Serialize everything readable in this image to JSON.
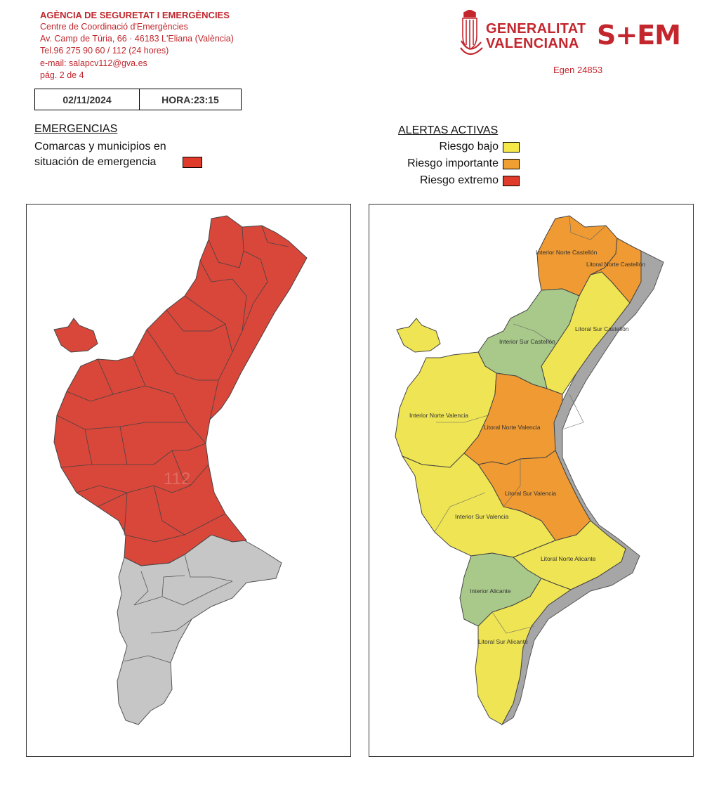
{
  "header": {
    "agency_name": "AGÈNCIA DE SEGURETAT I EMERGÈNCIES",
    "center": "Centre de Coordinació d'Emergències",
    "address": "Av. Camp de Túria, 66 · 46183 L'Eliana (València)",
    "phone": "Tel.96 275 90 60 /  112 (24 hores)",
    "email": "e-mail: salapcv112@gva.es",
    "page": "pág. 2 de 4",
    "date": "02/11/2024",
    "time": "HORA:23:15"
  },
  "logos": {
    "gva_line1": "GENERALITAT",
    "gva_line2": "VALENCIANA",
    "sem": "S+EM",
    "ref": "Egen 24853"
  },
  "emergencias": {
    "title": "EMERGENCIAS",
    "desc_line1": "Comarcas y municipios en",
    "desc_line2": "situación de emergencia",
    "color": "#e03a2a"
  },
  "alertas": {
    "title": "ALERTAS ACTIVAS",
    "levels": [
      {
        "label": "Riesgo bajo",
        "color": "#f5e94a"
      },
      {
        "label": "Riesgo importante",
        "color": "#f0a030"
      },
      {
        "label": "Riesgo extremo",
        "color": "#e03a2a"
      }
    ]
  },
  "map_right": {
    "zones": [
      {
        "label": "Interior Norte Castellón",
        "level": "importante"
      },
      {
        "label": "Litoral Norte Castellón",
        "level": "importante"
      },
      {
        "label": "Interior Sur Castellón",
        "level": "sin alerta"
      },
      {
        "label": "Litoral Sur Castellón",
        "level": "bajo"
      },
      {
        "label": "Interior Norte Valencia",
        "level": "bajo"
      },
      {
        "label": "Litoral Norte Valencia",
        "level": "importante"
      },
      {
        "label": "Interior Sur Valencia",
        "level": "bajo"
      },
      {
        "label": "Litoral Sur Valencia",
        "level": "importante"
      },
      {
        "label": "Litoral Norte Alicante",
        "level": "bajo"
      },
      {
        "label": "Interior Alicante",
        "level": "sin alerta"
      },
      {
        "label": "Litoral Sur Alicante",
        "level": "bajo"
      }
    ],
    "colors": {
      "bajo": "#efe453",
      "importante": "#ef9a32",
      "sin_alerta": "#a8c98a",
      "coast": "#a6a6a6"
    }
  },
  "map_left": {
    "emergency_color": "#d9463a",
    "other_color": "#c6c6c6"
  }
}
